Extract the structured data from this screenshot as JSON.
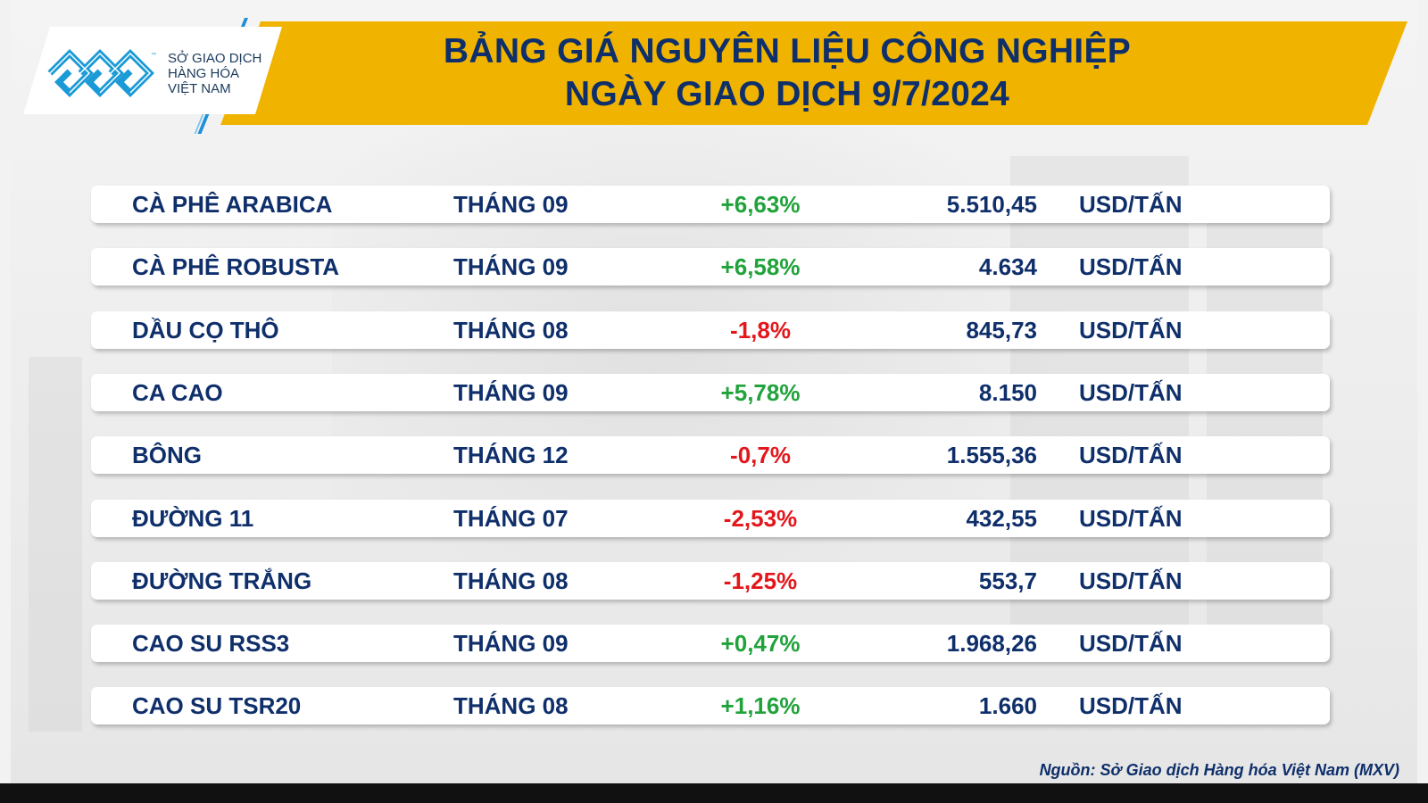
{
  "logo": {
    "line1": "SỞ GIAO DỊCH",
    "line2": "HÀNG HÓA",
    "line3": "VIỆT NAM",
    "tm": "™"
  },
  "title": {
    "line1": "BẢNG GIÁ NGUYÊN LIỆU CÔNG NGHIỆP",
    "line2": "NGÀY GIAO DỊCH 9/7/2024"
  },
  "colors": {
    "banner": "#f0b400",
    "title": "#0f2f6b",
    "up": "#1fa33a",
    "down": "#e3161b"
  },
  "rows": [
    {
      "name": "CÀ PHÊ ARABICA",
      "month": "THÁNG 09",
      "change": "+6,63%",
      "direction": "up",
      "price": "5.510,45",
      "unit": "USD/TẤN"
    },
    {
      "name": "CÀ PHÊ ROBUSTA",
      "month": "THÁNG 09",
      "change": "+6,58%",
      "direction": "up",
      "price": "4.634",
      "unit": "USD/TẤN"
    },
    {
      "name": "DẦU CỌ THÔ",
      "month": "THÁNG 08",
      "change": "-1,8%",
      "direction": "down",
      "price": "845,73",
      "unit": "USD/TẤN"
    },
    {
      "name": "CA CAO",
      "month": "THÁNG 09",
      "change": "+5,78%",
      "direction": "up",
      "price": "8.150",
      "unit": "USD/TẤN"
    },
    {
      "name": "BÔNG",
      "month": "THÁNG 12",
      "change": "-0,7%",
      "direction": "down",
      "price": "1.555,36",
      "unit": "USD/TẤN"
    },
    {
      "name": "ĐƯỜNG 11",
      "month": "THÁNG 07",
      "change": "-2,53%",
      "direction": "down",
      "price": "432,55",
      "unit": "USD/TẤN"
    },
    {
      "name": "ĐƯỜNG TRẮNG",
      "month": "THÁNG 08",
      "change": "-1,25%",
      "direction": "down",
      "price": "553,7",
      "unit": "USD/TẤN"
    },
    {
      "name": "CAO SU RSS3",
      "month": "THÁNG 09",
      "change": "+0,47%",
      "direction": "up",
      "price": "1.968,26",
      "unit": "USD/TẤN"
    },
    {
      "name": "CAO SU TSR20",
      "month": "THÁNG 08",
      "change": "+1,16%",
      "direction": "up",
      "price": "1.660",
      "unit": "USD/TẤN"
    }
  ],
  "source": "Nguồn: Sở Giao dịch Hàng hóa Việt Nam (MXV)"
}
